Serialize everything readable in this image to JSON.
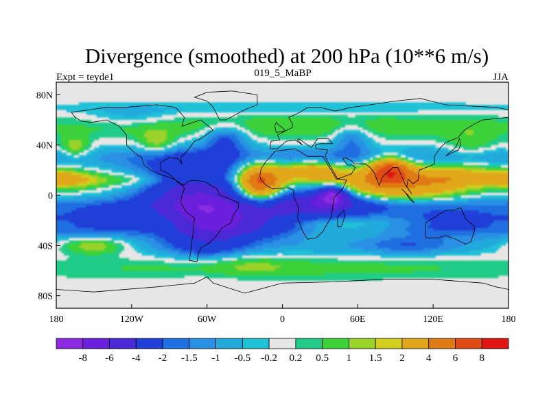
{
  "chart_data": {
    "type": "heatmap",
    "title": "Divergence (smoothed) at 200 hPa (10**6 m/s)",
    "subtitle_left": "Expt = teyde1",
    "subtitle_center": "019_5_MaBP",
    "subtitle_right": "JJA",
    "x_ticks": [
      {
        "value": -180,
        "label": "180"
      },
      {
        "value": -120,
        "label": "120W"
      },
      {
        "value": -60,
        "label": "60W"
      },
      {
        "value": 0,
        "label": "0"
      },
      {
        "value": 60,
        "label": "60E"
      },
      {
        "value": 120,
        "label": "120E"
      },
      {
        "value": 180,
        "label": "180"
      }
    ],
    "y_ticks": [
      {
        "value": 80,
        "label": "80N"
      },
      {
        "value": 40,
        "label": "40N"
      },
      {
        "value": 0,
        "label": "0"
      },
      {
        "value": -40,
        "label": "40S"
      },
      {
        "value": -80,
        "label": "80S"
      }
    ],
    "xlim": [
      -180,
      180
    ],
    "ylim": [
      -90,
      90
    ],
    "colorbar": {
      "labels": [
        "-8",
        "-6",
        "-4",
        "-2",
        "-1.5",
        "-1",
        "-0.5",
        "-0.2",
        "0.2",
        "0.5",
        "1",
        "1.5",
        "2",
        "4",
        "6",
        "8"
      ],
      "colors": [
        "#8a2be2",
        "#6a1fdc",
        "#4a28d6",
        "#1f3fd8",
        "#1f6fe0",
        "#2a90e4",
        "#22aadd",
        "#20c2d8",
        "#e6e6e6",
        "#20cc88",
        "#3ed23a",
        "#9ad22a",
        "#d2cf1e",
        "#e0a81a",
        "#e07a14",
        "#e04a14",
        "#e01414"
      ],
      "levels": [
        -8,
        -6,
        -4,
        -2,
        -1.5,
        -1,
        -0.5,
        -0.2,
        0.2,
        0.5,
        1,
        1.5,
        2,
        4,
        6,
        8
      ]
    },
    "features": [
      {
        "lon": 0,
        "lat": 12,
        "value": 0.6,
        "rlon": 180,
        "rlat": 3
      },
      {
        "lon": 0,
        "lat": -22,
        "value": 0.6,
        "rlon": 180,
        "rlat": 3
      },
      {
        "lon": -10,
        "lat": -8,
        "value": -1.8,
        "rlon": 180,
        "rlat": 5
      },
      {
        "lon": 30,
        "lat": 30,
        "value": -1.6,
        "rlon": 170,
        "rlat": 6
      },
      {
        "lon": 0,
        "lat": -40,
        "value": -0.8,
        "rlon": 170,
        "rlat": 6
      },
      {
        "lon": 0,
        "lat": 55,
        "value": 0.9,
        "rlon": 170,
        "rlat": 7
      },
      {
        "lon": 0,
        "lat": -58,
        "value": 0.7,
        "rlon": 160,
        "rlat": 6
      },
      {
        "lon": 0,
        "lat": 70,
        "value": -0.6,
        "rlon": 170,
        "rlat": 4
      },
      {
        "lon": -18,
        "lat": 10,
        "value": 6.5,
        "rlon": 12,
        "rlat": 10
      },
      {
        "lon": 22,
        "lat": 20,
        "value": 3.2,
        "rlon": 18,
        "rlat": 5
      },
      {
        "lon": 85,
        "lat": 20,
        "value": 6.5,
        "rlon": 12,
        "rlat": 7
      },
      {
        "lon": 70,
        "lat": 6,
        "value": 3.2,
        "rlon": 35,
        "rlat": 9
      },
      {
        "lon": 115,
        "lat": 12,
        "value": 2.2,
        "rlon": 25,
        "rlat": 9
      },
      {
        "lon": 140,
        "lat": 15,
        "value": 1.6,
        "rlon": 18,
        "rlat": 6
      },
      {
        "lon": 178,
        "lat": 15,
        "value": 1.5,
        "rlon": 15,
        "rlat": 5
      },
      {
        "lon": -170,
        "lat": 12,
        "value": 1.8,
        "rlon": 20,
        "rlat": 5
      },
      {
        "lon": -112,
        "lat": 12,
        "value": 1.0,
        "rlon": 22,
        "rlat": 5
      },
      {
        "lon": -78,
        "lat": 8,
        "value": -3.5,
        "rlon": 30,
        "rlat": 16
      },
      {
        "lon": -60,
        "lat": -18,
        "value": -4.5,
        "rlon": 22,
        "rlat": 20
      },
      {
        "lon": -25,
        "lat": -22,
        "value": -4.0,
        "rlon": 30,
        "rlat": 8
      },
      {
        "lon": 30,
        "lat": -5,
        "value": -4.5,
        "rlon": 30,
        "rlat": 9
      },
      {
        "lon": 40,
        "lat": 0,
        "value": -6.5,
        "rlon": 8,
        "rlat": 5
      },
      {
        "lon": 130,
        "lat": -22,
        "value": -2.5,
        "rlon": 40,
        "rlat": 8
      },
      {
        "lon": -130,
        "lat": -22,
        "value": -2.5,
        "rlon": 40,
        "rlat": 8
      },
      {
        "lon": -150,
        "lat": -40,
        "value": 2.0,
        "rlon": 20,
        "rlat": 5
      },
      {
        "lon": -165,
        "lat": 38,
        "value": 1.6,
        "rlon": 8,
        "rlat": 6
      },
      {
        "lon": -100,
        "lat": 42,
        "value": 1.5,
        "rlon": 10,
        "rlat": 7
      },
      {
        "lon": -45,
        "lat": 45,
        "value": -2.2,
        "rlon": 12,
        "rlat": 8
      },
      {
        "lon": 55,
        "lat": 45,
        "value": -1.6,
        "rlon": 10,
        "rlat": 8
      },
      {
        "lon": 150,
        "lat": 40,
        "value": 0.9,
        "rlon": 15,
        "rlat": 10
      },
      {
        "lon": -40,
        "lat": -55,
        "value": 0.8,
        "rlon": 30,
        "rlat": 6
      },
      {
        "lon": 100,
        "lat": -40,
        "value": -1.2,
        "rlon": 25,
        "rlat": 5
      },
      {
        "lon": -60,
        "lat": 15,
        "value": 1.4,
        "rlon": 6,
        "rlat": 4
      },
      {
        "lon": -120,
        "lat": 62,
        "value": -0.8,
        "rlon": 25,
        "rlat": 5
      }
    ]
  },
  "coastline": [
    [
      [
        -168,
        66
      ],
      [
        -140,
        70
      ],
      [
        -125,
        70
      ],
      [
        -100,
        72
      ],
      [
        -85,
        70
      ],
      [
        -78,
        62
      ],
      [
        -80,
        55
      ],
      [
        -65,
        60
      ],
      [
        -55,
        52
      ],
      [
        -65,
        45
      ],
      [
        -70,
        43
      ],
      [
        -76,
        35
      ],
      [
        -81,
        30
      ],
      [
        -80,
        25
      ],
      [
        -83,
        29
      ],
      [
        -90,
        30
      ],
      [
        -97,
        26
      ],
      [
        -97,
        20
      ],
      [
        -92,
        18
      ],
      [
        -88,
        15
      ],
      [
        -83,
        10
      ],
      [
        -80,
        8
      ],
      [
        -77,
        9
      ],
      [
        -75,
        11
      ],
      [
        -71,
        12
      ],
      [
        -62,
        11
      ],
      [
        -52,
        5
      ],
      [
        -50,
        0
      ],
      [
        -44,
        -2
      ],
      [
        -35,
        -6
      ],
      [
        -35,
        -10
      ],
      [
        -39,
        -16
      ],
      [
        -41,
        -22
      ],
      [
        -48,
        -26
      ],
      [
        -53,
        -33
      ],
      [
        -58,
        -38
      ],
      [
        -65,
        -42
      ],
      [
        -67,
        -47
      ],
      [
        -68,
        -53
      ],
      [
        -74,
        -52
      ],
      [
        -73,
        -45
      ],
      [
        -72,
        -36
      ],
      [
        -71,
        -30
      ],
      [
        -70,
        -18
      ],
      [
        -76,
        -14
      ],
      [
        -81,
        -6
      ],
      [
        -80,
        0
      ],
      [
        -78,
        5
      ],
      [
        -79,
        8
      ],
      [
        -85,
        12
      ],
      [
        -92,
        15
      ],
      [
        -96,
        16
      ],
      [
        -105,
        20
      ],
      [
        -110,
        24
      ],
      [
        -112,
        30
      ],
      [
        -118,
        34
      ],
      [
        -124,
        40
      ],
      [
        -124,
        48
      ],
      [
        -130,
        55
      ],
      [
        -140,
        60
      ],
      [
        -152,
        58
      ],
      [
        -160,
        59
      ],
      [
        -165,
        62
      ],
      [
        -168,
        66
      ]
    ],
    [
      [
        -18,
        15
      ],
      [
        -17,
        21
      ],
      [
        -13,
        27
      ],
      [
        -10,
        30
      ],
      [
        -6,
        35
      ],
      [
        10,
        37
      ],
      [
        20,
        31
      ],
      [
        32,
        31
      ],
      [
        34,
        28
      ],
      [
        43,
        13
      ],
      [
        51,
        12
      ],
      [
        48,
        5
      ],
      [
        41,
        -2
      ],
      [
        40,
        -10
      ],
      [
        39,
        -17
      ],
      [
        35,
        -24
      ],
      [
        32,
        -29
      ],
      [
        27,
        -34
      ],
      [
        20,
        -35
      ],
      [
        18,
        -32
      ],
      [
        15,
        -26
      ],
      [
        12,
        -18
      ],
      [
        13,
        -10
      ],
      [
        9,
        -1
      ],
      [
        9,
        4
      ],
      [
        4,
        6
      ],
      [
        -8,
        5
      ],
      [
        -13,
        8
      ],
      [
        -17,
        12
      ],
      [
        -18,
        15
      ]
    ],
    [
      [
        -10,
        37
      ],
      [
        -9,
        43
      ],
      [
        -2,
        44
      ],
      [
        -4,
        48
      ],
      [
        2,
        51
      ],
      [
        8,
        54
      ],
      [
        8,
        57
      ],
      [
        5,
        62
      ],
      [
        14,
        66
      ],
      [
        20,
        70
      ],
      [
        30,
        70
      ],
      [
        42,
        67
      ],
      [
        55,
        70
      ],
      [
        70,
        72
      ],
      [
        90,
        75
      ],
      [
        110,
        77
      ],
      [
        130,
        72
      ],
      [
        150,
        71
      ],
      [
        170,
        70
      ],
      [
        180,
        68
      ],
      [
        180,
        62
      ],
      [
        160,
        60
      ],
      [
        155,
        58
      ],
      [
        145,
        52
      ],
      [
        140,
        46
      ],
      [
        130,
        42
      ],
      [
        126,
        38
      ],
      [
        121,
        31
      ],
      [
        121,
        25
      ],
      [
        117,
        23
      ],
      [
        109,
        20
      ],
      [
        108,
        12
      ],
      [
        104,
        9
      ],
      [
        100,
        13
      ],
      [
        99,
        7
      ],
      [
        103,
        1
      ],
      [
        98,
        8
      ],
      [
        95,
        15
      ],
      [
        92,
        22
      ],
      [
        88,
        22
      ],
      [
        80,
        15
      ],
      [
        77,
        8
      ],
      [
        73,
        18
      ],
      [
        70,
        22
      ],
      [
        66,
        25
      ],
      [
        57,
        25
      ],
      [
        56,
        27
      ],
      [
        50,
        30
      ],
      [
        48,
        29
      ],
      [
        52,
        24
      ],
      [
        56,
        24
      ],
      [
        58,
        22
      ],
      [
        55,
        17
      ],
      [
        44,
        13
      ],
      [
        36,
        27
      ],
      [
        34,
        31
      ],
      [
        36,
        36
      ],
      [
        27,
        37
      ],
      [
        26,
        40
      ],
      [
        30,
        41
      ],
      [
        40,
        41
      ],
      [
        37,
        45
      ],
      [
        33,
        45
      ],
      [
        28,
        45
      ],
      [
        23,
        38
      ],
      [
        20,
        40
      ],
      [
        13,
        45
      ],
      [
        12,
        44
      ],
      [
        16,
        40
      ],
      [
        10,
        44
      ],
      [
        3,
        43
      ],
      [
        -4,
        37
      ],
      [
        -10,
        37
      ]
    ],
    [
      [
        114,
        -22
      ],
      [
        114,
        -34
      ],
      [
        124,
        -34
      ],
      [
        130,
        -32
      ],
      [
        138,
        -35
      ],
      [
        146,
        -39
      ],
      [
        150,
        -37
      ],
      [
        153,
        -28
      ],
      [
        153,
        -25
      ],
      [
        146,
        -19
      ],
      [
        142,
        -10
      ],
      [
        136,
        -12
      ],
      [
        130,
        -12
      ],
      [
        122,
        -17
      ],
      [
        114,
        -22
      ]
    ],
    [
      [
        -50,
        60
      ],
      [
        -45,
        60
      ],
      [
        -30,
        68
      ],
      [
        -20,
        72
      ],
      [
        -20,
        80
      ],
      [
        -40,
        83
      ],
      [
        -60,
        82
      ],
      [
        -70,
        78
      ],
      [
        -60,
        75
      ],
      [
        -55,
        70
      ],
      [
        -50,
        60
      ]
    ],
    [
      [
        -180,
        -75
      ],
      [
        -150,
        -77
      ],
      [
        -100,
        -73
      ],
      [
        -70,
        -70
      ],
      [
        -60,
        -65
      ],
      [
        -55,
        -70
      ],
      [
        -30,
        -78
      ],
      [
        0,
        -70
      ],
      [
        40,
        -69
      ],
      [
        80,
        -67
      ],
      [
        120,
        -67
      ],
      [
        160,
        -70
      ],
      [
        170,
        -73
      ],
      [
        180,
        -75
      ]
    ],
    [
      [
        -5,
        50
      ],
      [
        2,
        51
      ],
      [
        1,
        53
      ],
      [
        -3,
        56
      ],
      [
        -5,
        58
      ],
      [
        -6,
        55
      ],
      [
        -5,
        50
      ]
    ],
    [
      [
        130,
        31
      ],
      [
        135,
        34
      ],
      [
        140,
        36
      ],
      [
        142,
        40
      ],
      [
        141,
        45
      ],
      [
        138,
        38
      ],
      [
        132,
        33
      ],
      [
        130,
        31
      ]
    ],
    [
      [
        95,
        5
      ],
      [
        100,
        0
      ],
      [
        105,
        -6
      ],
      [
        102,
        -4
      ],
      [
        98,
        2
      ],
      [
        95,
        5
      ]
    ],
    [
      [
        44,
        -25
      ],
      [
        47,
        -25
      ],
      [
        50,
        -16
      ],
      [
        49,
        -12
      ],
      [
        44,
        -17
      ],
      [
        44,
        -25
      ]
    ]
  ]
}
